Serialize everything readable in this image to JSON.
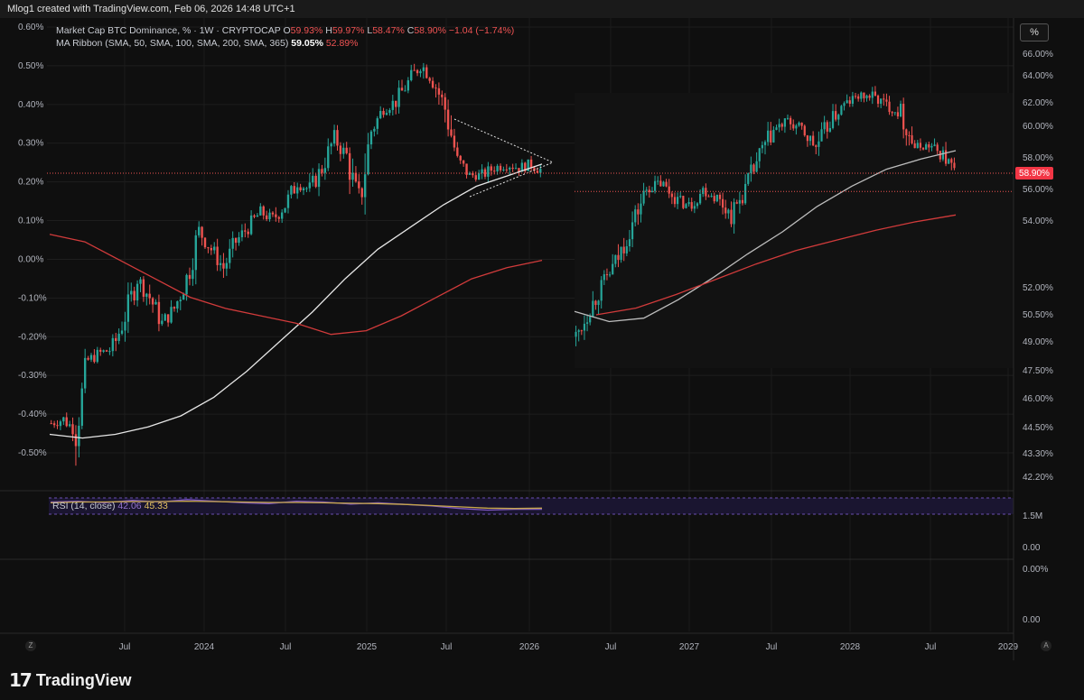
{
  "header": {
    "title": "Mlog1 created with TradingView.com, Feb 06, 2026 14:48 UTC+1"
  },
  "legend": {
    "name": "Market Cap BTC Dominance, % · 1W · CRYPTOCAP",
    "o_label": "O",
    "o_value": "59.93%",
    "h_label": "H",
    "h_value": "59.97%",
    "l_label": "L",
    "l_value": "58.47%",
    "c_label": "C",
    "c_value": "58.90%",
    "change": "−1.04 (−1.74%)",
    "ma_name": "MA Ribbon (SMA, 50, SMA, 100, SMA, 200, SMA, 365)",
    "ma_val1": "59.05%",
    "ma_val2": "52.89%",
    "rsi_name": "RSI (14, close)",
    "rsi_val1": "42.06",
    "rsi_val2": "45.33"
  },
  "price_axis_label": "%",
  "price_badge": "58.90%",
  "footer_brand": "TradingView",
  "corner_left": "Z",
  "corner_right": "A",
  "colors": {
    "background": "#0f0f0f",
    "up": "#26a69a",
    "down": "#ef5350",
    "ma_fast": "#e6e6e6",
    "ma_slow": "#d13b3b",
    "rsi": "#7e57c2",
    "rsi_ma": "#c8a84a",
    "badge": "#f23645"
  },
  "chart_data": [
    {
      "type": "candlestick",
      "title": "",
      "overlay": "Market Cap BTC Dominance, % · 1W · CRYPTOCAP",
      "left_axis": {
        "ticks": [
          "0.60%",
          "0.50%",
          "0.40%",
          "0.30%",
          "0.20%",
          "0.10%",
          "0.00%",
          "-0.10%",
          "-0.20%",
          "-0.30%",
          "-0.40%",
          "-0.50%"
        ],
        "ylim": [
          -0.55,
          0.6
        ]
      },
      "right_axis": {
        "ticks": [
          "66.00%",
          "64.00%",
          "62.00%",
          "60.00%",
          "58.00%",
          "56.00%",
          "54.00%",
          "52.00%",
          "50.50%",
          "49.00%",
          "47.50%",
          "46.00%",
          "44.50%",
          "43.30%",
          "42.20%"
        ]
      },
      "x_axis": {
        "ticks": [
          "Jul",
          "2024",
          "Jul",
          "2025",
          "Jul",
          "2026",
          "Jul",
          "2027",
          "Jul",
          "2028",
          "Jul",
          "2029"
        ]
      },
      "grid": true,
      "annotations": [
        "symmetrical triangle (dotted lines)",
        "horizontal dotted line at last price"
      ],
      "series": [
        {
          "name": "Market Cap BTC Dominance, %",
          "kind": "candles",
          "close_path_left_axis": [
            -0.47,
            -0.46,
            -0.49,
            -0.3,
            -0.28,
            -0.27,
            -0.18,
            -0.08,
            -0.13,
            -0.2,
            -0.16,
            -0.08,
            0.05,
            0.0,
            -0.05,
            0.02,
            0.06,
            0.1,
            0.08,
            0.12,
            0.18,
            0.16,
            0.22,
            0.3,
            0.25,
            0.12,
            0.32,
            0.38,
            0.4,
            0.45,
            0.5,
            0.46,
            0.38,
            0.24,
            0.2,
            0.2,
            0.22,
            0.23,
            0.22,
            0.23,
            0.21
          ]
        },
        {
          "name": "Market Cap BTC Dominance, % (second segment)",
          "kind": "candles",
          "close_path_right_axis": [
            49.3,
            51,
            52.5,
            54,
            56,
            58,
            58.4,
            57.5,
            57,
            58,
            57.5,
            56.5,
            58,
            60,
            61.5,
            62,
            61.5,
            60.5,
            62,
            63,
            63.5,
            63.5,
            63,
            62.5,
            60.5,
            60.6,
            60,
            58.9
          ]
        }
      ],
      "indicators": {
        "ma_fast_left_axis": [
          -0.5,
          -0.51,
          -0.5,
          -0.48,
          -0.45,
          -0.4,
          -0.33,
          -0.25,
          -0.17,
          -0.08,
          0.0,
          0.06,
          0.12,
          0.17,
          0.2,
          0.23
        ],
        "ma_slow_left_axis": [
          0.04,
          0.02,
          -0.03,
          -0.08,
          -0.13,
          -0.16,
          -0.18,
          -0.2,
          -0.23,
          -0.22,
          -0.18,
          -0.13,
          -0.08,
          -0.05,
          -0.03
        ],
        "ma_fast_right_axis": [
          50.8,
          50.2,
          50.4,
          51.5,
          52.8,
          54.2,
          55.5,
          57.0,
          58.2,
          59.2,
          59.8,
          60.3
        ],
        "ma_slow_right_axis": [
          50.6,
          51.0,
          51.8,
          52.7,
          53.6,
          54.4,
          55.0,
          55.6,
          56.1,
          56.5
        ]
      }
    },
    {
      "type": "line",
      "title": "",
      "overlay": "RSI (14, close)",
      "right_axis": {
        "ticks": [
          "1.5M",
          "0.00",
          "0.00%",
          "0.00"
        ]
      },
      "series": [
        {
          "name": "RSI (14, close)",
          "values": [
            60,
            62,
            58,
            64,
            60,
            66,
            62,
            58,
            56,
            62,
            60,
            55,
            58,
            54,
            50,
            44,
            40,
            42,
            42
          ]
        },
        {
          "name": "RSI-based MA",
          "values": [
            58,
            60,
            60,
            61,
            61,
            62,
            61,
            60,
            59,
            59,
            58,
            57,
            56,
            54,
            51,
            48,
            45,
            44,
            45
          ]
        }
      ]
    }
  ]
}
